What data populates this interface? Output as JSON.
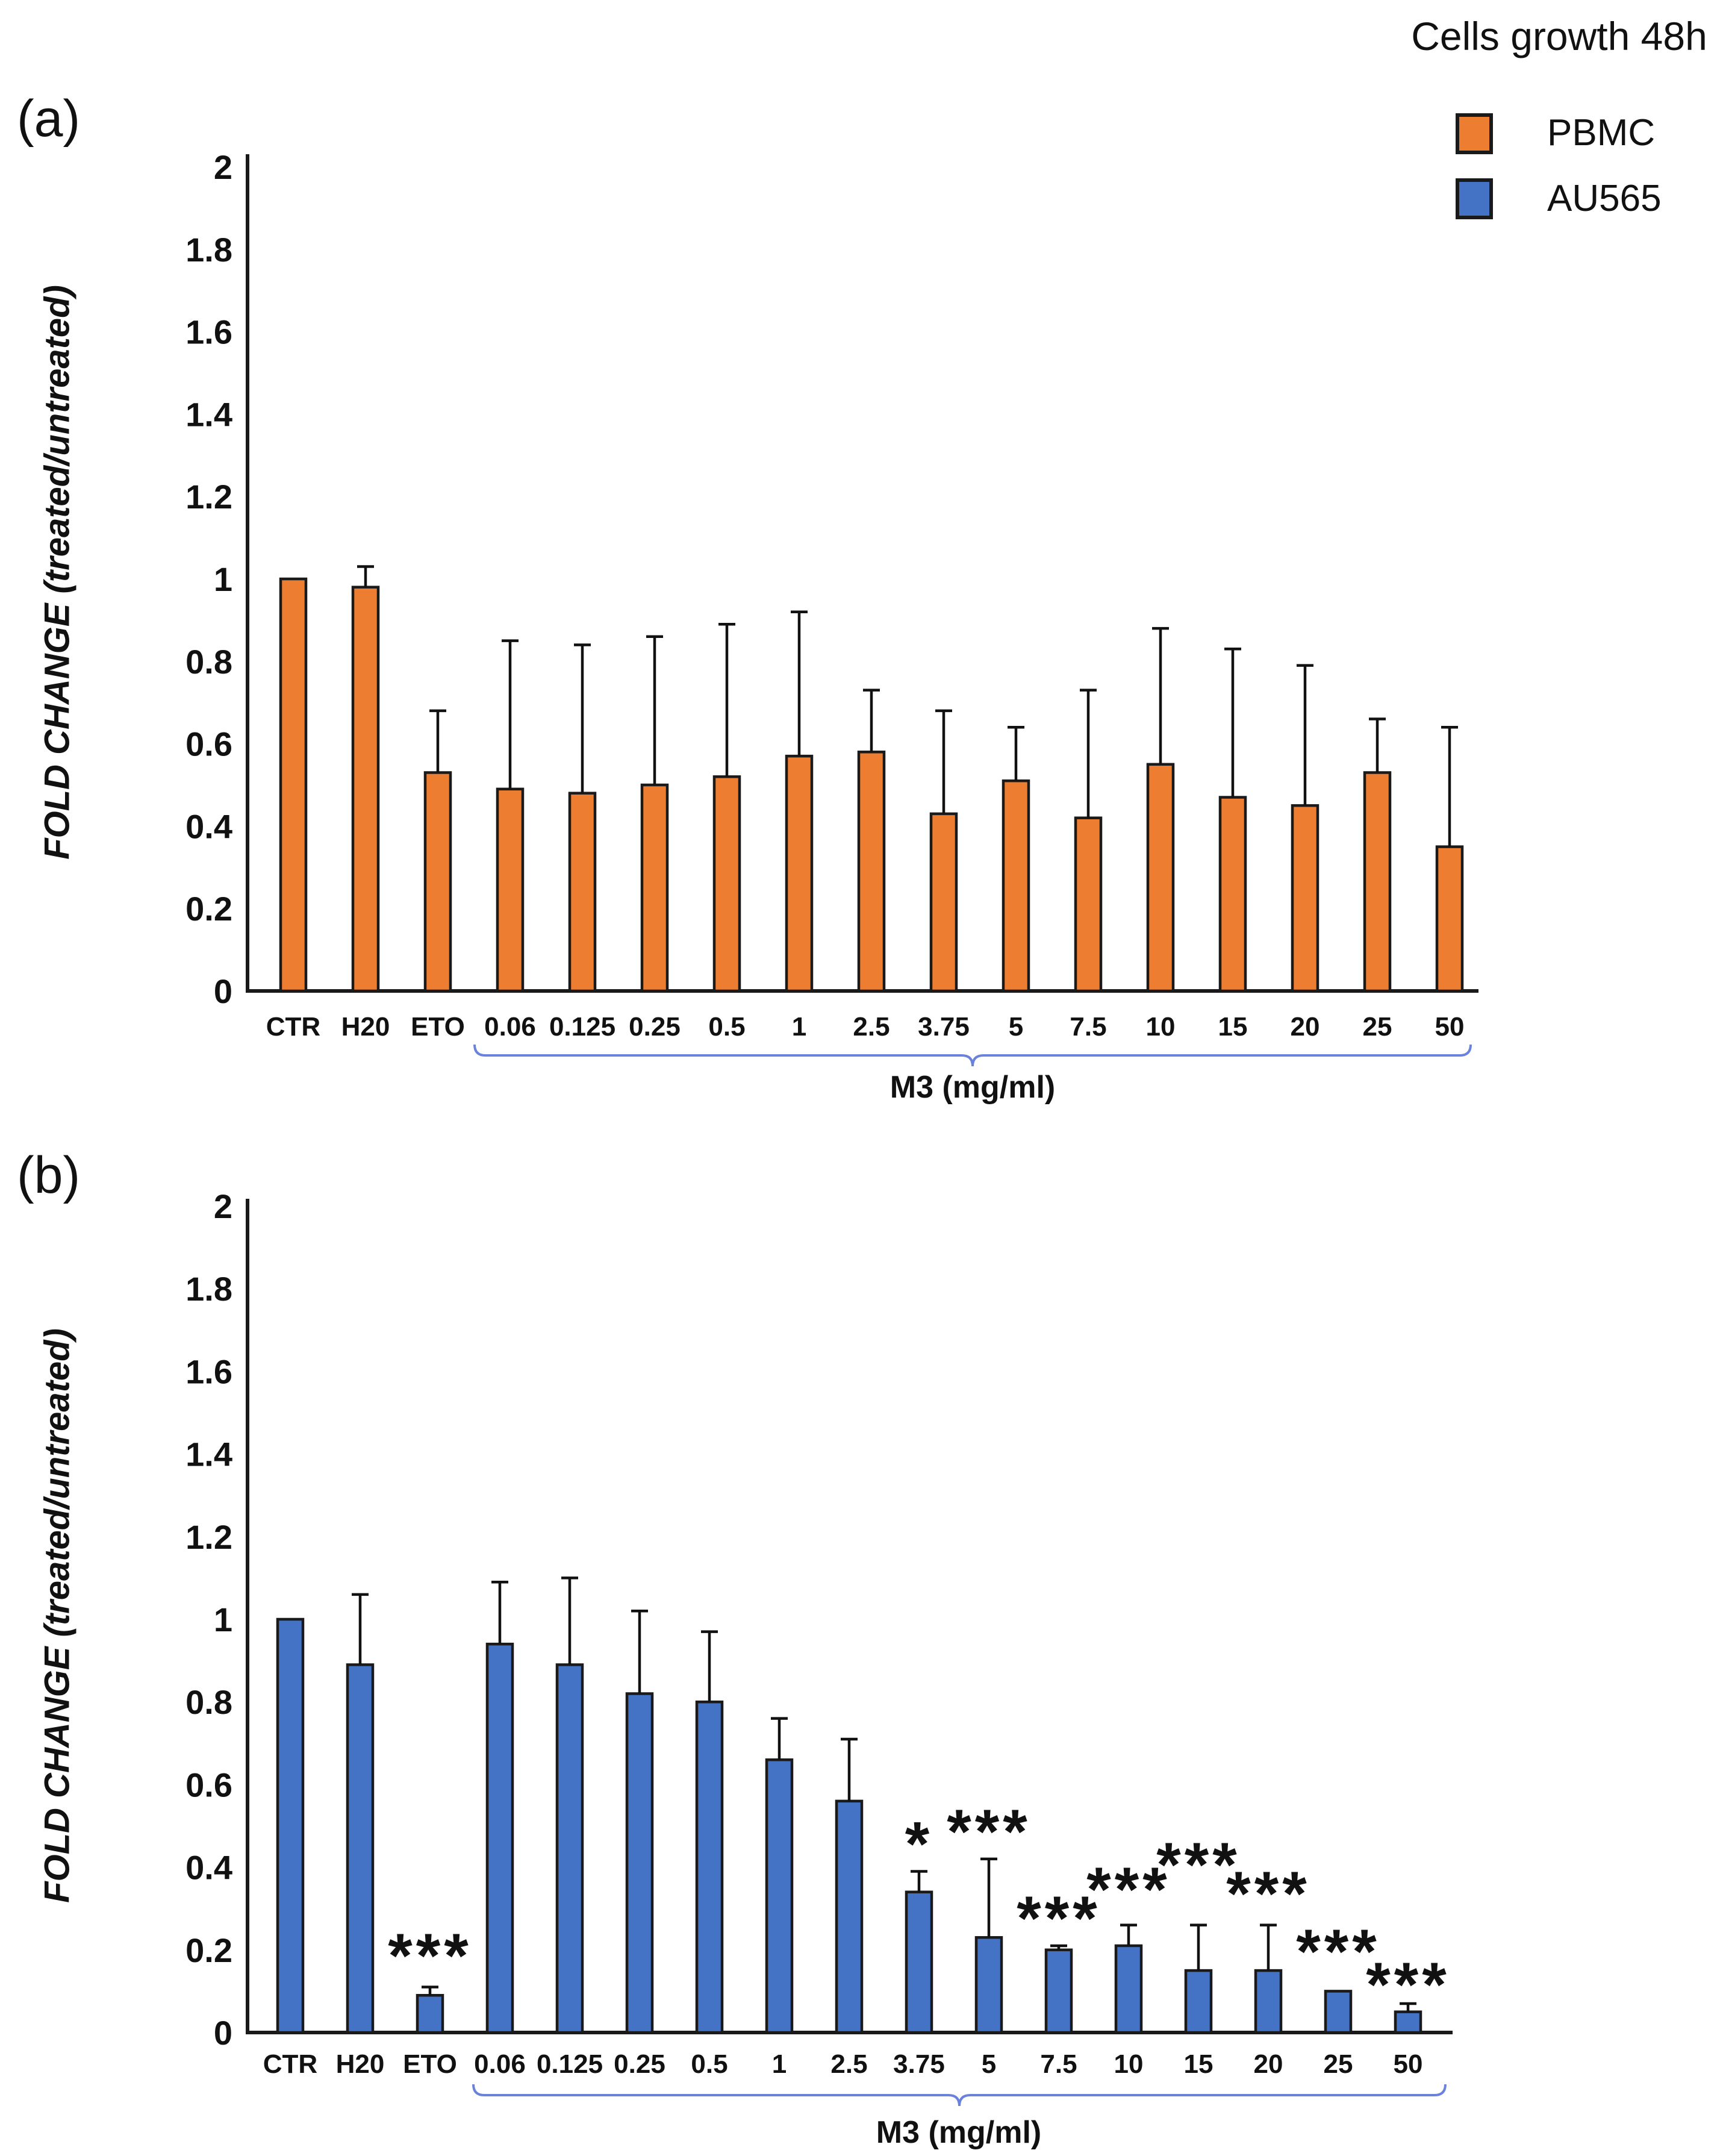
{
  "figure": {
    "title": "Cells growth 48h",
    "y_axis_label": "FOLD CHANGE (treated/untreated)",
    "legend": [
      {
        "label": "PBMC",
        "color": "#ED7D31",
        "swatch_icon": "orange-square-icon"
      },
      {
        "label": "AU565",
        "color": "#4472C4",
        "swatch_icon": "blue-square-icon"
      }
    ]
  },
  "panels": {
    "a": "(a)",
    "b": "(b)"
  },
  "chart_data": [
    {
      "type": "bar",
      "panel": "(a)",
      "series": "PBMC",
      "bar_color": "#ED7D31",
      "title": "Cells growth 48h",
      "xlabel": "",
      "ylabel": "FOLD CHANGE (treated/untreated)",
      "ylim": [
        0,
        2
      ],
      "ytick_labels": [
        "0",
        "0.2",
        "0.4",
        "0.6",
        "0.8",
        "1",
        "1.2",
        "1.4",
        "1.6",
        "1.8",
        "2"
      ],
      "grid": false,
      "legend_position": "top-right",
      "categories": [
        "CTR",
        "H20",
        "ETO",
        "0.06",
        "0.125",
        "0.25",
        "0.5",
        "1",
        "2.5",
        "3.75",
        "5",
        "7.5",
        "10",
        "15",
        "20",
        "25",
        "50"
      ],
      "values": [
        1.0,
        0.98,
        0.53,
        0.49,
        0.48,
        0.5,
        0.52,
        0.57,
        0.58,
        0.43,
        0.51,
        0.42,
        0.55,
        0.47,
        0.45,
        0.53,
        0.35
      ],
      "errors_plus": [
        null,
        0.05,
        0.15,
        0.36,
        0.36,
        0.36,
        0.37,
        0.35,
        0.15,
        0.25,
        0.13,
        0.31,
        0.33,
        0.36,
        0.34,
        0.13,
        0.29
      ],
      "significance": [
        null,
        null,
        null,
        null,
        null,
        null,
        null,
        null,
        null,
        null,
        null,
        null,
        null,
        null,
        null,
        null,
        null
      ],
      "significance_y": [
        null,
        null,
        null,
        null,
        null,
        null,
        null,
        null,
        null,
        null,
        null,
        null,
        null,
        null,
        null,
        null,
        null
      ],
      "group_label": "M3 (mg/ml)",
      "group_from": "0.06",
      "group_to": "50"
    },
    {
      "type": "bar",
      "panel": "(b)",
      "series": "AU565",
      "bar_color": "#4472C4",
      "title": "Cells growth 48h",
      "xlabel": "",
      "ylabel": "FOLD CHANGE (treated/untreated)",
      "ylim": [
        0,
        2
      ],
      "ytick_labels": [
        "0",
        "0.2",
        "0.4",
        "0.6",
        "0.8",
        "1",
        "1.2",
        "1.4",
        "1.6",
        "1.8",
        "2"
      ],
      "grid": false,
      "legend_position": "top-right",
      "categories": [
        "CTR",
        "H20",
        "ETO",
        "0.06",
        "0.125",
        "0.25",
        "0.5",
        "1",
        "2.5",
        "3.75",
        "5",
        "7.5",
        "10",
        "15",
        "20",
        "25",
        "50"
      ],
      "values": [
        1.0,
        0.89,
        0.09,
        0.94,
        0.89,
        0.82,
        0.8,
        0.66,
        0.56,
        0.34,
        0.23,
        0.2,
        0.21,
        0.15,
        0.15,
        0.1,
        0.05
      ],
      "errors_plus": [
        null,
        0.17,
        0.02,
        0.15,
        0.21,
        0.2,
        0.17,
        0.1,
        0.15,
        0.05,
        0.19,
        0.01,
        0.05,
        0.11,
        0.11,
        null,
        0.02
      ],
      "significance": [
        null,
        null,
        "***",
        null,
        null,
        null,
        null,
        null,
        null,
        "*",
        "***",
        "***",
        "***",
        "***",
        "***",
        "***",
        "***"
      ],
      "significance_y": [
        null,
        null,
        0.21,
        null,
        null,
        null,
        null,
        null,
        null,
        0.48,
        0.51,
        0.3,
        0.37,
        0.43,
        0.36,
        0.22,
        0.14
      ],
      "group_label": "M3 (mg/ml)",
      "group_from": "0.06",
      "group_to": "50"
    }
  ]
}
